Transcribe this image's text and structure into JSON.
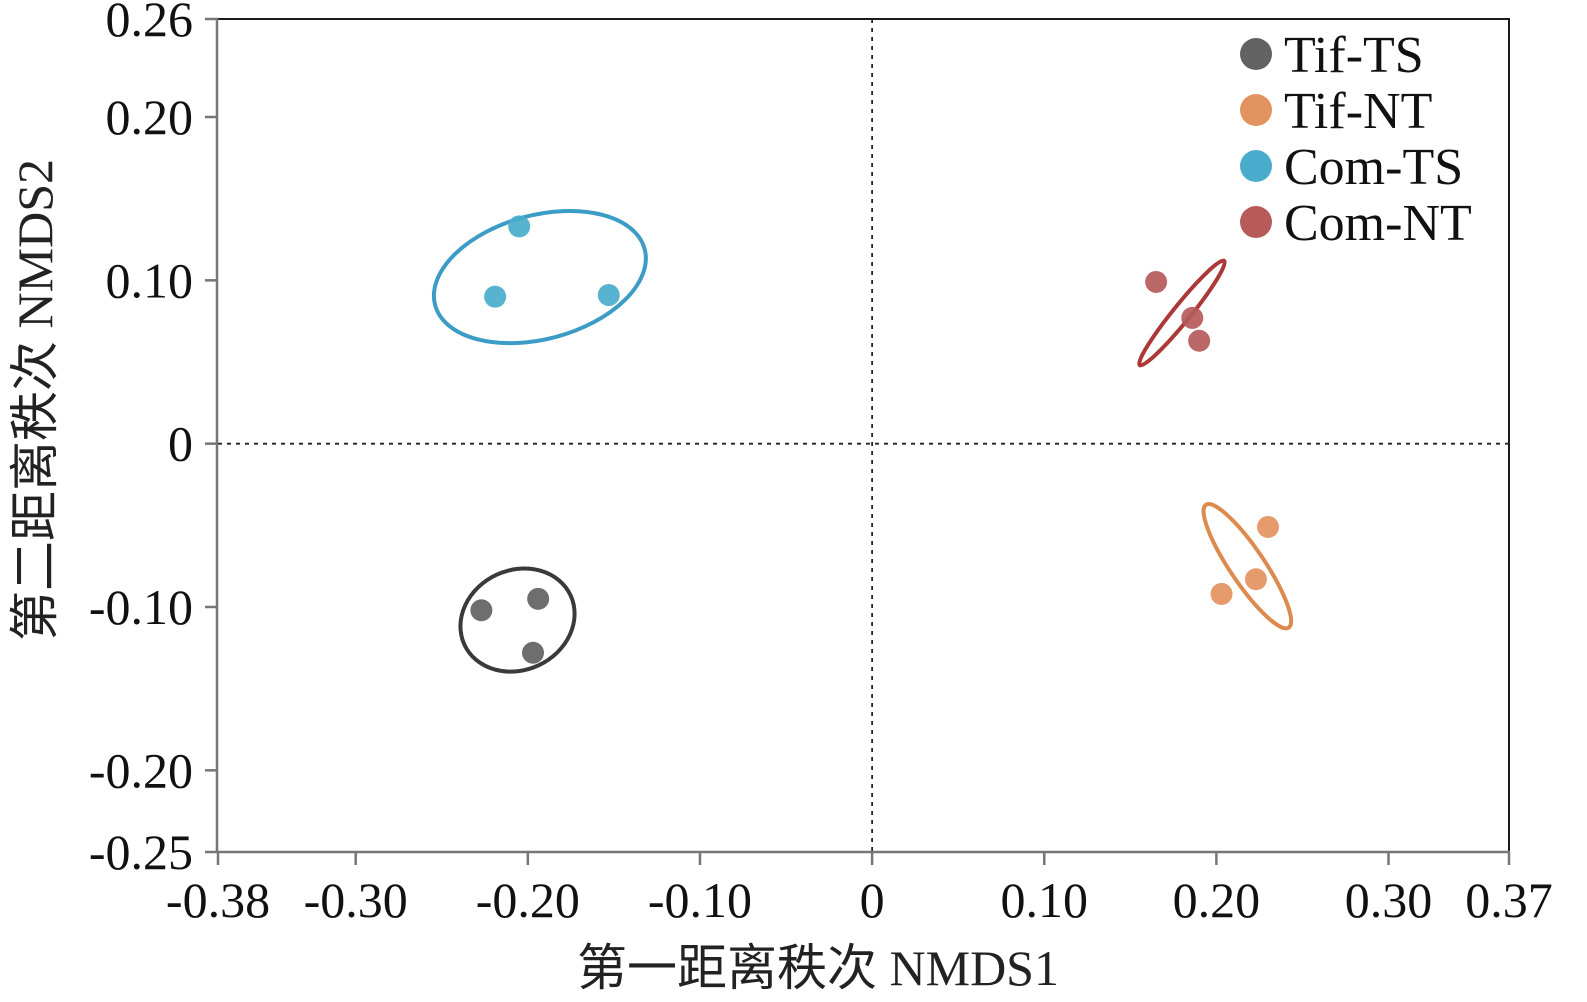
{
  "chart_data": {
    "type": "scatter",
    "title": "",
    "xlabel": "第一距离秩次 NMDS1",
    "ylabel": "第二距离秩次 NMDS2",
    "xlim": [
      -0.38,
      0.37
    ],
    "ylim": [
      -0.25,
      0.26
    ],
    "x_ticks": [
      -0.38,
      -0.3,
      -0.2,
      -0.1,
      0,
      0.1,
      0.2,
      0.3,
      0.37
    ],
    "x_tick_labels": [
      "-0.38",
      "-0.30",
      "-0.20",
      "-0.10",
      "0",
      "0.10",
      "0.20",
      "0.30",
      "0.37"
    ],
    "y_ticks": [
      0.26,
      0.2,
      0.1,
      0,
      -0.1,
      -0.2,
      -0.25
    ],
    "y_tick_labels": [
      "0.26",
      "0.20",
      "0.10",
      "0",
      "-0.10",
      "-0.20",
      "-0.25"
    ],
    "grid": false,
    "reference_lines": {
      "x": 0,
      "y": 0,
      "style": "dotted"
    },
    "legend": {
      "placement": "top-right"
    },
    "series": [
      {
        "name": "Tif-TS",
        "color": "#626262",
        "ellipse_color": "#3a3a3a",
        "points": [
          {
            "x": -0.227,
            "y": -0.102
          },
          {
            "x": -0.194,
            "y": -0.095
          },
          {
            "x": -0.197,
            "y": -0.128
          }
        ],
        "ellipse": {
          "cx": -0.206,
          "cy": -0.108,
          "a": 0.034,
          "b": 0.029,
          "angle_deg": 25
        }
      },
      {
        "name": "Tif-NT",
        "color": "#e39360",
        "ellipse_color": "#dc8a4e",
        "points": [
          {
            "x": 0.23,
            "y": -0.051
          },
          {
            "x": 0.223,
            "y": -0.083
          },
          {
            "x": 0.203,
            "y": -0.092
          }
        ],
        "ellipse": {
          "cx": 0.218,
          "cy": -0.075,
          "a": 0.043,
          "b": 0.01,
          "angle_deg": -56
        }
      },
      {
        "name": "Com-TS",
        "color": "#4aaccc",
        "ellipse_color": "#3d9cc6",
        "points": [
          {
            "x": -0.205,
            "y": 0.133
          },
          {
            "x": -0.219,
            "y": 0.09
          },
          {
            "x": -0.153,
            "y": 0.091
          }
        ],
        "ellipse": {
          "cx": -0.193,
          "cy": 0.102,
          "a": 0.063,
          "b": 0.036,
          "angle_deg": 15
        }
      },
      {
        "name": "Com-NT",
        "color": "#b65a5a",
        "ellipse_color": "#ad3838",
        "points": [
          {
            "x": 0.165,
            "y": 0.099
          },
          {
            "x": 0.186,
            "y": 0.077
          },
          {
            "x": 0.19,
            "y": 0.063
          }
        ],
        "ellipse": {
          "cx": 0.18,
          "cy": 0.08,
          "a": 0.039,
          "b": 0.005,
          "angle_deg": 51
        }
      }
    ]
  }
}
